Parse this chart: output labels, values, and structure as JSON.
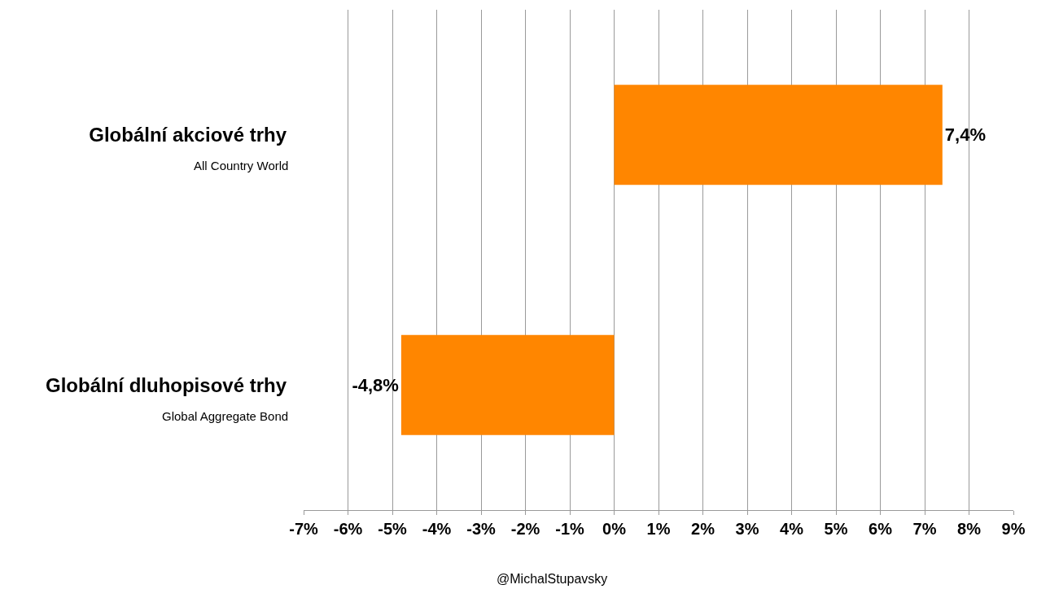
{
  "chart_data": {
    "type": "bar",
    "orientation": "horizontal",
    "categories": [
      "Globální akciové trhy",
      "Globální dluhopisové trhy"
    ],
    "values": [
      7.4,
      -4.8
    ],
    "value_labels": [
      "7,4%",
      "-4,8%"
    ],
    "color": "#ff8600",
    "xlim": [
      -7,
      9
    ],
    "xticks": [
      {
        "value": -7,
        "label": "-7%"
      },
      {
        "value": -6,
        "label": "-6%"
      },
      {
        "value": -5,
        "label": "-5%"
      },
      {
        "value": -4,
        "label": "-4%"
      },
      {
        "value": -3,
        "label": "-3%"
      },
      {
        "value": -2,
        "label": "-2%"
      },
      {
        "value": -1,
        "label": "-1%"
      },
      {
        "value": 0,
        "label": "0%"
      },
      {
        "value": 1,
        "label": "1%"
      },
      {
        "value": 2,
        "label": "2%"
      },
      {
        "value": 3,
        "label": "3%"
      },
      {
        "value": 4,
        "label": "4%"
      },
      {
        "value": 5,
        "label": "5%"
      },
      {
        "value": 6,
        "label": "6%"
      },
      {
        "value": 7,
        "label": "7%"
      },
      {
        "value": 8,
        "label": "8%"
      },
      {
        "value": 9,
        "label": "9%"
      }
    ],
    "grid": "x",
    "annotations": [
      "All Country World",
      "Global Aggregate Bond",
      "@MichalStupavsky"
    ]
  }
}
